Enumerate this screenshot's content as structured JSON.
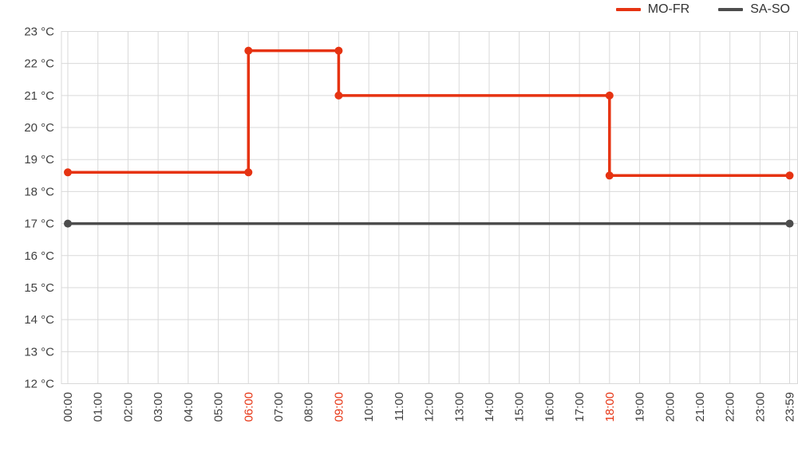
{
  "legend": {
    "items": [
      {
        "label": "MO-FR",
        "color": "#e63312"
      },
      {
        "label": "SA-SO",
        "color": "#4d4d4d"
      }
    ]
  },
  "chart_data": {
    "type": "line",
    "subtype": "step",
    "title": "",
    "xlabel": "",
    "ylabel": "",
    "grid": true,
    "legend_position": "top-right",
    "ylim": [
      12,
      23
    ],
    "y_unit": "°C",
    "y_ticks": [
      {
        "value": 23,
        "label": "23 °C"
      },
      {
        "value": 22,
        "label": "22 °C"
      },
      {
        "value": 21,
        "label": "21 °C"
      },
      {
        "value": 20,
        "label": "20 °C"
      },
      {
        "value": 19,
        "label": "19 °C"
      },
      {
        "value": 18,
        "label": "18 °C"
      },
      {
        "value": 17,
        "label": "17 °C"
      },
      {
        "value": 16,
        "label": "16 °C"
      },
      {
        "value": 15,
        "label": "15 °C"
      },
      {
        "value": 14,
        "label": "14 °C"
      },
      {
        "value": 13,
        "label": "13 °C"
      },
      {
        "value": 12,
        "label": "12 °C"
      }
    ],
    "x_ticks": [
      "00:00",
      "01:00",
      "02:00",
      "03:00",
      "04:00",
      "05:00",
      "06:00",
      "07:00",
      "08:00",
      "09:00",
      "10:00",
      "11:00",
      "12:00",
      "13:00",
      "14:00",
      "15:00",
      "16:00",
      "17:00",
      "18:00",
      "19:00",
      "20:00",
      "21:00",
      "22:00",
      "23:00",
      "23:59"
    ],
    "highlighted_x_ticks": [
      "06:00",
      "09:00",
      "18:00"
    ],
    "series": [
      {
        "name": "MO-FR",
        "color": "#e63312",
        "points": [
          {
            "time": "00:00",
            "temp": 18.6
          },
          {
            "time": "06:00",
            "temp": 18.6
          },
          {
            "time": "06:00",
            "temp": 22.4
          },
          {
            "time": "09:00",
            "temp": 22.4
          },
          {
            "time": "09:00",
            "temp": 21.0
          },
          {
            "time": "18:00",
            "temp": 21.0
          },
          {
            "time": "18:00",
            "temp": 18.5
          },
          {
            "time": "23:59",
            "temp": 18.5
          }
        ]
      },
      {
        "name": "SA-SO",
        "color": "#4d4d4d",
        "points": [
          {
            "time": "00:00",
            "temp": 17.0
          },
          {
            "time": "23:59",
            "temp": 17.0
          }
        ]
      }
    ],
    "colors": {
      "grid": "#d9d9d9",
      "tick_text": "#404040",
      "highlight_tick_text": "#e63312",
      "background": "#ffffff"
    }
  }
}
